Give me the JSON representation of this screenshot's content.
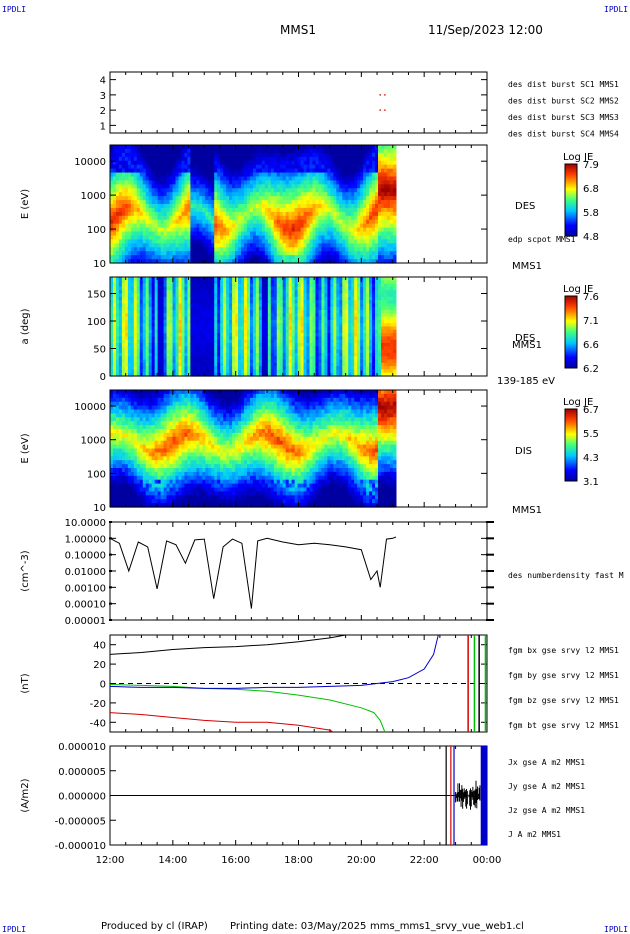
{
  "header": {
    "corner_left": "IPDLI",
    "corner_right": "IPDLI",
    "spacecraft": "MMS1",
    "datetime": "11/Sep/2023 12:00"
  },
  "footer": {
    "credit": "Produced by cl (IRAP)",
    "printing": "Printing date: 03/May/2025",
    "script": "mms_mms1_srvy_vue_web1.cl",
    "corner_left": "IPDLI",
    "corner_right": "IPDLI"
  },
  "time_axis": {
    "ticks": [
      "12:00",
      "14:00",
      "16:00",
      "18:00",
      "20:00",
      "22:00",
      "00:00"
    ],
    "start_hour": 12,
    "end_hour": 24
  },
  "colors": {
    "red": "#d40000",
    "green": "#00c000",
    "blue": "#0000c8",
    "magenta": "#d000d0",
    "black": "#000000"
  },
  "chart_data": [
    {
      "type": "scatter",
      "name": "burst",
      "ylim": [
        0.5,
        4.5
      ],
      "yticks": [
        "4",
        "3",
        "2",
        "1"
      ],
      "legend": [
        "des dist burst SC1 MMS1",
        "des dist burst SC2 MMS2",
        "des dist burst SC3 MMS3",
        "des dist burst SC4 MMS4"
      ],
      "legend_colors": [
        "#0000c8",
        "#d000d0",
        "#d40000",
        "#00c000"
      ],
      "points": [
        {
          "x": 20.6,
          "y": 3
        },
        {
          "x": 20.75,
          "y": 3
        },
        {
          "x": 20.6,
          "y": 2
        },
        {
          "x": 20.75,
          "y": 2
        }
      ]
    },
    {
      "type": "heatmap",
      "name": "des-energy",
      "ylabel": "E (eV)",
      "yscale": "log",
      "ylim": [
        10,
        30000
      ],
      "yticks": [
        "10000",
        "1000",
        "100",
        "10"
      ],
      "side_label": "DES",
      "side_label2": "edp scpot MMS1",
      "side_label3": "MMS1",
      "colorbar": {
        "title": "Log JE",
        "ticks": [
          "7.9",
          "6.8",
          "5.8",
          "4.8"
        ]
      },
      "data_end_hour": 21.1
    },
    {
      "type": "heatmap",
      "name": "des-pitch",
      "ylabel": "a (deg)",
      "ylim": [
        0,
        180
      ],
      "yticks": [
        "150",
        "100",
        "50",
        "0"
      ],
      "side_label": "DES",
      "side_label2": "MMS1",
      "side_label3": "139-185 eV",
      "colorbar": {
        "title": "Log JE",
        "ticks": [
          "7.6",
          "7.1",
          "6.6",
          "6.2"
        ]
      },
      "data_end_hour": 21.1
    },
    {
      "type": "heatmap",
      "name": "dis-energy",
      "ylabel": "E (eV)",
      "yscale": "log",
      "ylim": [
        10,
        30000
      ],
      "yticks": [
        "10000",
        "1000",
        "100",
        "10"
      ],
      "side_label": "DIS",
      "side_label2": "MMS1",
      "colorbar": {
        "title": "Log JE",
        "ticks": [
          "6.7",
          "5.5",
          "4.3",
          "3.1"
        ]
      },
      "data_end_hour": 21.1
    },
    {
      "type": "line",
      "name": "density",
      "ylabel": "(cm^-3)",
      "yscale": "log",
      "ylim": [
        1e-05,
        10
      ],
      "yticks": [
        "10.0000",
        "1.00000",
        "0.10000",
        "0.01000",
        "0.00100",
        "0.00010",
        "0.00001"
      ],
      "legend": [
        "des numberdensity fast M"
      ],
      "series": [
        {
          "x": [
            12.0,
            12.3,
            12.6,
            12.9,
            13.2,
            13.5,
            13.8,
            14.1,
            14.4,
            14.7,
            15.0,
            15.3,
            15.6,
            15.9,
            16.2,
            16.5,
            16.7,
            17.0,
            17.5,
            18.0,
            18.5,
            19.0,
            19.5,
            20.0,
            20.3,
            20.5,
            20.6,
            20.8,
            21.0,
            21.1
          ],
          "y": [
            1.0,
            0.5,
            0.01,
            0.6,
            0.3,
            0.0008,
            0.7,
            0.4,
            0.03,
            0.8,
            0.9,
            0.0002,
            0.3,
            0.9,
            0.5,
            5e-05,
            0.7,
            1.0,
            0.6,
            0.4,
            0.5,
            0.4,
            0.3,
            0.2,
            0.003,
            0.01,
            0.001,
            0.9,
            1.0,
            1.2
          ]
        }
      ]
    },
    {
      "type": "line",
      "name": "fgm",
      "ylabel": "(nT)",
      "ylim": [
        -50,
        50
      ],
      "yticks": [
        "40",
        "20",
        "0",
        "-20",
        "-40"
      ],
      "legend": [
        "fgm bx gse srvy l2 MMS1",
        "fgm by gse srvy l2 MMS1",
        "fgm bz gse srvy l2 MMS1",
        "fgm bt gse srvy l2 MMS1"
      ],
      "legend_colors": [
        "#d40000",
        "#00c000",
        "#0000c8",
        "#000000"
      ],
      "series": [
        {
          "name": "bx",
          "color": "#d40000",
          "x": [
            12.0,
            13.0,
            14.0,
            15.0,
            16.0,
            17.0,
            18.0,
            19.0,
            19.1
          ],
          "y": [
            -30,
            -32,
            -35,
            -38,
            -40,
            -40,
            -43,
            -48,
            -50
          ]
        },
        {
          "name": "by",
          "color": "#00c000",
          "x": [
            12.0,
            13.0,
            14.0,
            15.0,
            16.0,
            17.0,
            18.0,
            19.0,
            20.0,
            20.4,
            20.6,
            20.75
          ],
          "y": [
            -1,
            -2,
            -3,
            -5,
            -6,
            -8,
            -12,
            -17,
            -25,
            -30,
            -38,
            -50
          ]
        },
        {
          "name": "bz",
          "color": "#0000c8",
          "x": [
            12.0,
            13.0,
            14.0,
            15.0,
            16.0,
            17.0,
            18.0,
            19.0,
            20.0,
            20.5,
            21.0,
            21.5,
            22.0,
            22.3,
            22.45
          ],
          "y": [
            -3,
            -4,
            -4,
            -5,
            -5,
            -4,
            -4,
            -3,
            -2,
            0,
            2,
            6,
            15,
            30,
            50
          ]
        },
        {
          "name": "bt",
          "color": "#000000",
          "x": [
            12.0,
            13.0,
            14.0,
            15.0,
            16.0,
            17.0,
            18.0,
            19.0,
            19.5
          ],
          "y": [
            30,
            32,
            35,
            37,
            38,
            40,
            43,
            47,
            50
          ]
        }
      ]
    },
    {
      "type": "line",
      "name": "current",
      "ylabel": "(A/m2)",
      "ylim": [
        -1e-05,
        1e-05
      ],
      "yticks": [
        "0.000010",
        "0.000005",
        "0.000000",
        "-0.000005",
        "-0.000010"
      ],
      "legend": [
        "Jx gse A m2 MMS1",
        "Jy gse A m2 MMS1",
        "Jz gse A m2 MMS1",
        "J A m2 MMS1"
      ],
      "legend_colors": [
        "#d40000",
        "#00c000",
        "#0000c8",
        "#000000"
      ]
    }
  ]
}
